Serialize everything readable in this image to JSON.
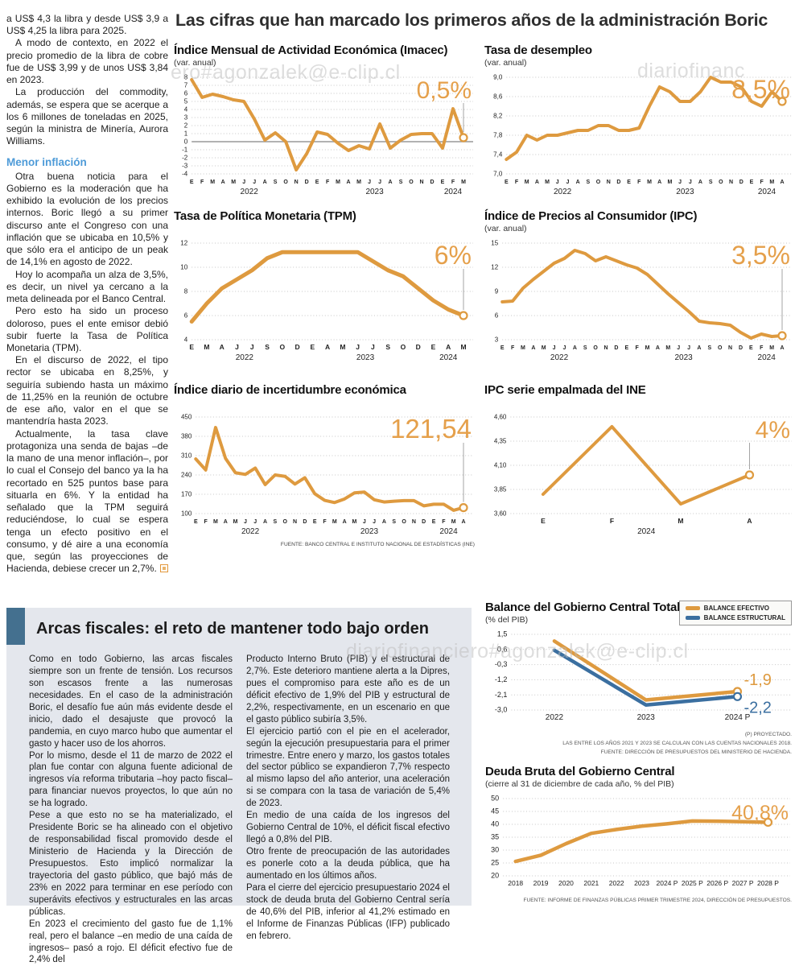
{
  "headline": "Las cifras que han marcado los primeros años de la administración Boric",
  "article": {
    "paragraphs1": [
      "a US$ 4,3 la libra y desde US$ 3,9 a US$ 4,25 la libra para 2025.",
      "A modo de contexto, en 2022 el precio promedio de la libra de cobre fue de US$ 3,99 y de unos US$ 3,84 en 2023.",
      "La producción del commodity, además, se espera que se acerque a los 6 millones de toneladas en 2025, según la ministra de Minería, Aurora Williams."
    ],
    "subhead": "Menor inflación",
    "paragraphs2": [
      "Otra buena noticia para el Gobierno es la moderación que ha exhibido la evolución de los precios internos. Boric llegó a su primer discurso ante el Congreso con una inflación que se ubicaba en 10,5% y que sólo era el anticipo de un peak de 14,1% en agosto de 2022.",
      "Hoy lo acompaña un alza de 3,5%, es decir, un nivel ya cercano a la meta delineada por el Banco Central.",
      "Pero esto ha sido un proceso doloroso, pues el ente emisor debió subir fuerte la Tasa de Política Monetaria (TPM).",
      "En el discurso de 2022, el tipo rector se ubicaba en 8,25%, y seguiría subiendo hasta un máximo de 11,25% en la reunión de octubre de ese año, valor en el que se mantendría hasta 2023.",
      "Actualmente, la tasa clave protagoniza una senda de bajas –de la mano de una menor inflación–, por lo cual el Consejo del banco ya la ha recortado en 525 puntos base para situarla en 6%. Y la entidad ha señalado que la TPM seguirá reduciéndose, lo cual se espera tenga un efecto positivo en el consumo, y dé aire a una economía que, según las proyecciones de Hacienda, debiese crecer un 2,7%."
    ]
  },
  "fiscal": {
    "title": "Arcas fiscales: el reto de mantener todo bajo orden",
    "col1": [
      "Como en todo Gobierno, las arcas fiscales siempre son un frente de tensión. Los recursos son escasos frente a las numerosas necesidades. En el caso de la administración Boric, el desafío fue aún más evidente desde el inicio, dado el desajuste que provocó la pandemia, en cuyo marco hubo que aumentar el gasto y hacer uso de los ahorros.",
      "Por lo mismo, desde el 11 de marzo de 2022 el plan fue contar con alguna fuente adicional de ingresos vía reforma tributaria –hoy pacto fiscal– para financiar nuevos proyectos, lo que aún no se ha logrado.",
      "Pese a que esto no se ha materializado, el Presidente Boric se ha alineado con el objetivo de responsabilidad fiscal promovido desde el Ministerio de Hacienda y la Dirección de Presupuestos. Esto implicó normalizar la trayectoria del gasto público, que bajó más de 23% en 2022 para terminar en ese período con superávits efectivos y estructurales en las arcas públicas.",
      "En 2023 el crecimiento del gasto fue de 1,1% real, pero el balance –en medio de una caída de ingresos– pasó a rojo. El déficit efectivo fue de 2,4% del"
    ],
    "col2": [
      "Producto Interno Bruto (PIB) y el estructural de 2,7%. Este deterioro mantiene alerta a la Dipres, pues el compromiso para este año es de un déficit efectivo de 1,9% del PIB y estructural de 2,2%, respectivamente, en un escenario en que el gasto público subiría 3,5%.",
      "El ejercicio partió con el pie en el acelerador, según la ejecución presupuestaria para el primer trimestre. Entre enero y marzo, los gastos totales del sector público se expandieron 7,7% respecto al mismo lapso del año anterior, una aceleración si se compara con la tasa de variación de 5,4% de 2023.",
      "En medio de una caída de los ingresos del Gobierno Central de 10%, el déficit fiscal efectivo llegó a 0,8% del PIB.",
      "Otro frente de preocupación de las autoridades es ponerle coto a la deuda pública, que ha aumentado en los últimos años.",
      "Para el cierre del ejercicio presupuestario 2024 el stock de deuda bruta del Gobierno Central sería de 40,6% del PIB, inferior al 41,2% estimado en el Informe de Finanzas Públicas (IFP) publicado en febrero."
    ]
  },
  "watermarks": {
    "wm1": "ero#agonzalek@e-clip.cl",
    "wm2": "diariofinanc",
    "wm3": "diariofinanciero#agonzalek@e-clip.cl"
  },
  "colors": {
    "line_orange": "#DE9A3F",
    "line_blue": "#3B6FA0",
    "highlight_orange": "#E5A04B",
    "subhead_blue": "#4E9BD8",
    "panel_bg": "#E4E7ED",
    "panel_bar": "#44708F"
  },
  "chart_data": [
    {
      "key": "imacec",
      "type": "line",
      "title": "Índice Mensual de Actividad Económica (Imacec)",
      "subtitle": "(var. anual)",
      "highlight": "0,5%",
      "hl_size": 30,
      "pointer": true,
      "ytick_values": [
        8,
        7,
        6,
        5,
        4,
        3,
        2,
        1,
        0,
        -1,
        -2,
        -3,
        -4
      ],
      "ytick_labels": [
        "8",
        "7",
        "6",
        "5",
        "4",
        "3",
        "2",
        "1",
        "0",
        "-1",
        "-2",
        "-3",
        "-4"
      ],
      "zero_line": 0,
      "x_labels": [
        "E",
        "F",
        "M",
        "A",
        "M",
        "J",
        "J",
        "A",
        "S",
        "O",
        "N",
        "D",
        "E",
        "F",
        "M",
        "A",
        "M",
        "J",
        "J",
        "A",
        "S",
        "O",
        "N",
        "D",
        "E",
        "F",
        "M"
      ],
      "year_labels": [
        {
          "label": "2022",
          "index": 5.5
        },
        {
          "label": "2023",
          "index": 17.5
        },
        {
          "label": "2024",
          "index": 25
        }
      ],
      "series": [
        {
          "name": "Imacec",
          "color": "#DE9A3F",
          "values": [
            7.7,
            5.5,
            5.9,
            5.6,
            5.2,
            5.0,
            2.8,
            0.2,
            1.1,
            0.0,
            -3.5,
            -1.5,
            1.2,
            0.9,
            -0.2,
            -1.1,
            -0.5,
            -0.9,
            2.2,
            -0.8,
            0.2,
            0.9,
            1.0,
            1.0,
            -0.8,
            4.1,
            0.5
          ]
        }
      ]
    },
    {
      "key": "desempleo",
      "type": "line",
      "title": "Tasa de desempleo",
      "subtitle": "(var. anual)",
      "highlight": "8,5%",
      "hl_size": 32,
      "pointer": true,
      "ytick_values": [
        9.0,
        8.6,
        8.2,
        7.8,
        7.4,
        7.0
      ],
      "ytick_labels": [
        "9,0",
        "8,6",
        "8,2",
        "7,8",
        "7,4",
        "7,0"
      ],
      "x_labels": [
        "E",
        "F",
        "M",
        "A",
        "M",
        "J",
        "J",
        "A",
        "S",
        "O",
        "N",
        "D",
        "E",
        "F",
        "M",
        "A",
        "M",
        "J",
        "J",
        "A",
        "S",
        "O",
        "N",
        "D",
        "E",
        "F",
        "M",
        "A"
      ],
      "year_labels": [
        {
          "label": "2022",
          "index": 5.5
        },
        {
          "label": "2023",
          "index": 17.5
        },
        {
          "label": "2024",
          "index": 25.5
        }
      ],
      "series": [
        {
          "name": "Tasa de desempleo",
          "color": "#DE9A3F",
          "values": [
            7.3,
            7.45,
            7.8,
            7.7,
            7.8,
            7.8,
            7.85,
            7.9,
            7.9,
            8.0,
            8.0,
            7.9,
            7.9,
            7.95,
            8.4,
            8.8,
            8.7,
            8.5,
            8.5,
            8.7,
            9.0,
            8.9,
            8.9,
            8.8,
            8.5,
            8.4,
            8.7,
            8.5
          ]
        }
      ]
    },
    {
      "key": "tpm",
      "type": "line",
      "title": "Tasa de Política Monetaria (TPM)",
      "subtitle": "",
      "highlight": "6%",
      "hl_size": 32,
      "pointer": true,
      "lw": 5,
      "ytick_values": [
        12,
        10,
        8,
        6,
        4
      ],
      "ytick_labels": [
        "12",
        "10",
        "8",
        "6",
        "4"
      ],
      "x_labels": [
        "E",
        "M",
        "A",
        "J",
        "J",
        "S",
        "O",
        "D",
        "E",
        "A",
        "M",
        "J",
        "J",
        "S",
        "O",
        "D",
        "E",
        "A",
        "M"
      ],
      "year_labels": [
        {
          "label": "2022",
          "index": 3.5
        },
        {
          "label": "2023",
          "index": 11.5
        },
        {
          "label": "2024",
          "index": 17
        }
      ],
      "series": [
        {
          "name": "TPM",
          "color": "#DE9A3F",
          "values": [
            5.5,
            7.0,
            8.25,
            9.0,
            9.75,
            10.75,
            11.25,
            11.25,
            11.25,
            11.25,
            11.25,
            11.25,
            10.5,
            9.75,
            9.25,
            8.25,
            7.25,
            6.5,
            6.0
          ]
        }
      ]
    },
    {
      "key": "ipc",
      "type": "line",
      "title": "Índice de Precios al Consumidor (IPC)",
      "subtitle": "(var. anual)",
      "highlight": "3,5%",
      "hl_size": 32,
      "pointer": true,
      "ytick_values": [
        15,
        12,
        9,
        6,
        3
      ],
      "ytick_labels": [
        "15",
        "12",
        "9",
        "6",
        "3"
      ],
      "x_labels": [
        "E",
        "F",
        "M",
        "A",
        "M",
        "J",
        "J",
        "A",
        "S",
        "O",
        "N",
        "D",
        "E",
        "F",
        "M",
        "A",
        "M",
        "J",
        "J",
        "A",
        "S",
        "O",
        "N",
        "D",
        "E",
        "F",
        "M",
        "A"
      ],
      "year_labels": [
        {
          "label": "2022",
          "index": 5.5
        },
        {
          "label": "2023",
          "index": 17.5
        },
        {
          "label": "2024",
          "index": 25.5
        }
      ],
      "series": [
        {
          "name": "IPC",
          "color": "#DE9A3F",
          "values": [
            7.7,
            7.8,
            9.4,
            10.5,
            11.5,
            12.5,
            13.1,
            14.1,
            13.7,
            12.8,
            13.3,
            12.8,
            12.3,
            11.9,
            11.1,
            9.9,
            8.7,
            7.6,
            6.5,
            5.3,
            5.1,
            5.0,
            4.8,
            3.9,
            3.2,
            3.7,
            3.4,
            3.5
          ]
        }
      ]
    },
    {
      "key": "incertidumbre",
      "type": "line",
      "title": "Índice diario de incertidumbre económica",
      "subtitle": "",
      "highlight": "121,54",
      "hl_size": 33,
      "pointer": true,
      "source": "FUENTE: BANCO CENTRAL E INSTITUTO NACIONAL DE ESTADÍSTICAS (INE)",
      "ytick_values": [
        450,
        380,
        310,
        240,
        170,
        100
      ],
      "ytick_labels": [
        "450",
        "380",
        "310",
        "240",
        "170",
        "100"
      ],
      "x_labels": [
        "E",
        "F",
        "M",
        "A",
        "M",
        "J",
        "J",
        "A",
        "S",
        "O",
        "N",
        "D",
        "E",
        "F",
        "M",
        "A",
        "M",
        "J",
        "J",
        "A",
        "S",
        "O",
        "N",
        "D",
        "E",
        "F",
        "M",
        "A"
      ],
      "year_labels": [
        {
          "label": "2022",
          "index": 5.5
        },
        {
          "label": "2023",
          "index": 17.5
        },
        {
          "label": "2024",
          "index": 25.5
        }
      ],
      "series": [
        {
          "name": "Incertidumbre económica",
          "color": "#DE9A3F",
          "values": [
            298,
            258,
            412,
            300,
            248,
            242,
            265,
            205,
            240,
            235,
            207,
            230,
            172,
            148,
            140,
            153,
            175,
            178,
            150,
            142,
            145,
            147,
            147,
            128,
            134,
            134,
            112,
            121.54
          ]
        }
      ]
    },
    {
      "key": "ipc_empalmada",
      "type": "line",
      "title": "IPC serie empalmada del INE",
      "subtitle": "",
      "highlight": "4%",
      "hl_size": 30,
      "pointer": true,
      "ytick_values": [
        4.6,
        4.35,
        4.1,
        3.85,
        3.6
      ],
      "ytick_labels": [
        "4,60",
        "4,35",
        "4,10",
        "3,85",
        "3,60"
      ],
      "x_labels": [
        "E",
        "F",
        "M",
        "A"
      ],
      "year_labels": [
        {
          "label": "2024",
          "index": 1.5
        }
      ],
      "x_inset": 0.12,
      "series": [
        {
          "name": "IPC serie empalmada",
          "color": "#DE9A3F",
          "values": [
            3.8,
            4.5,
            3.7,
            4.0
          ]
        }
      ]
    },
    {
      "key": "balance",
      "type": "line",
      "title": "Balance del Gobierno Central Total",
      "subtitle": "(% del PIB)",
      "ytick_values": [
        1.5,
        0.6,
        -0.3,
        -1.2,
        -2.1,
        -3.0
      ],
      "ytick_labels": [
        "1,5",
        "0,6",
        "-0,3",
        "-1,2",
        "-2,1",
        "-3,0"
      ],
      "yfs": 9,
      "xfs": 10,
      "lw": 4.5,
      "x_inset": 0.16,
      "x_labels": [
        "2022",
        "2023",
        "2024 P"
      ],
      "series": [
        {
          "name": "BALANCE EFECTIVO",
          "color": "#DE9A3F",
          "values": [
            1.1,
            -2.4,
            -1.9
          ],
          "end_label": "-1,9",
          "end_dy": -8
        },
        {
          "name": "BALANCE ESTRUCTURAL",
          "color": "#3B6FA0",
          "values": [
            0.55,
            -2.7,
            -2.2
          ],
          "end_label": "-2,2",
          "end_dy": 20
        }
      ],
      "footnotes": [
        "(P) PROYECTADO.",
        "LAS ENTRE LOS AÑOS 2021 Y 2023 SE CALCULAN  CON LAS CUENTAS NACIONALES 2018.",
        "FUENTE: DIRECCIÓN DE PRESUPUESTOS DEL MINISTERIO DE HACIENDA."
      ]
    },
    {
      "key": "deuda",
      "type": "line",
      "title": "Deuda Bruta del Gobierno Central",
      "subtitle": "(cierre al 31 de diciembre de cada año, % del PIB)",
      "highlight": "40,8%",
      "hl_size": 25,
      "ytick_values": [
        50,
        45,
        40,
        35,
        30,
        25,
        20
      ],
      "ytick_labels": [
        "50",
        "45",
        "40",
        "35",
        "30",
        "25",
        "20"
      ],
      "yfs": 9,
      "xfs": 8.5,
      "lw": 4.5,
      "x_inset": 0.045,
      "x_labels": [
        "2018",
        "2019",
        "2020",
        "2021",
        "2022",
        "2023",
        "2024 P",
        "2025 P",
        "2026 P",
        "2027 P",
        "2028 P"
      ],
      "series": [
        {
          "name": "Deuda bruta",
          "color": "#DE9A3F",
          "values": [
            25.6,
            28.0,
            32.5,
            36.5,
            38.0,
            39.3,
            40.2,
            41.3,
            41.2,
            41.0,
            40.8
          ]
        }
      ],
      "footnotes": [
        "FUENTE: INFORME DE FINANZAS PÚBLICAS PRIMER TRIMESTRE 2024, DIRECCIÓN DE PRESUPUESTOS."
      ]
    }
  ]
}
